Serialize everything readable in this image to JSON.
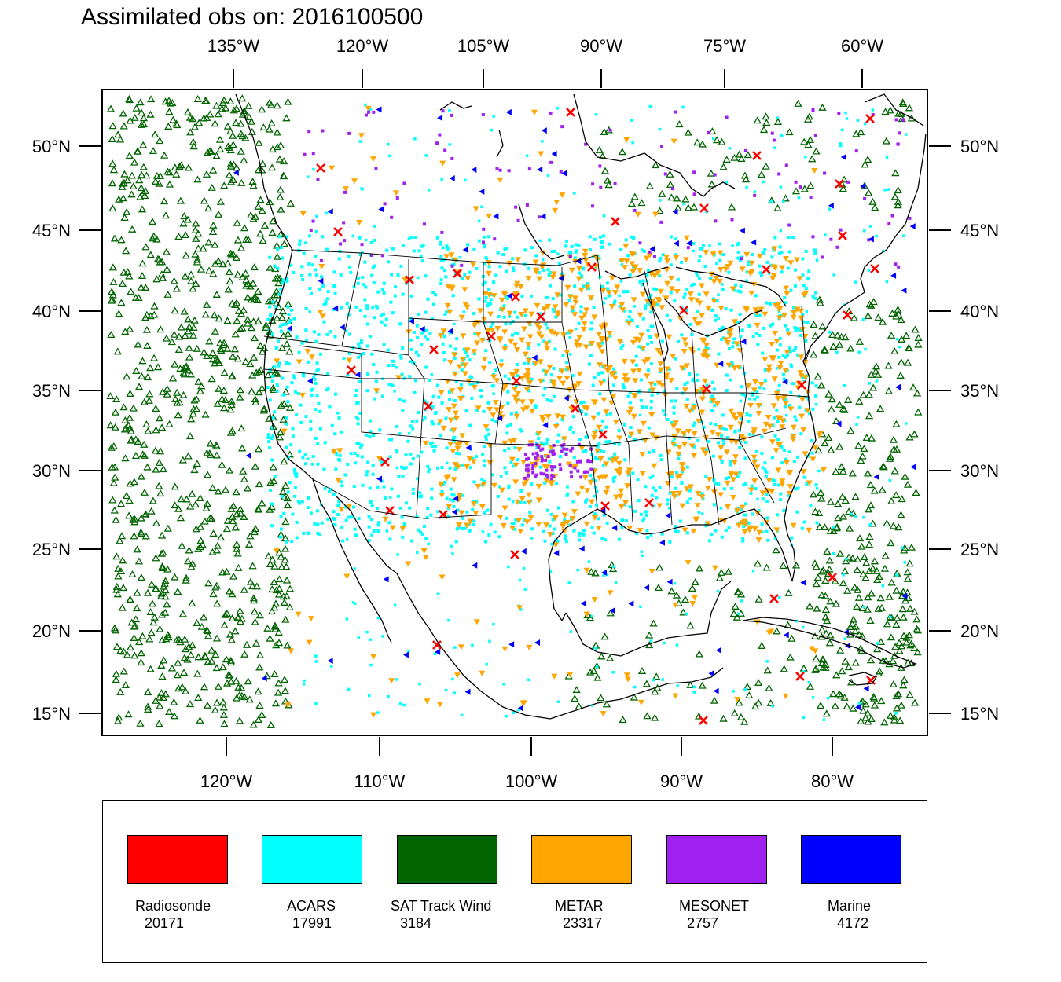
{
  "title": "Assimilated obs on: 2016100500",
  "axes": {
    "top_lon_labels": [
      "135°W",
      "120°W",
      "105°W",
      "90°W",
      "75°W",
      "60°W"
    ],
    "bottom_lon_labels": [
      "120°W",
      "110°W",
      "100°W",
      "90°W",
      "80°W"
    ],
    "lat_labels": [
      "50°N",
      "45°N",
      "40°N",
      "35°N",
      "30°N",
      "25°N",
      "20°N",
      "15°N"
    ]
  },
  "legend": [
    {
      "name": "Radiosonde",
      "count": "20171",
      "color": "#ff0000"
    },
    {
      "name": "ACARS",
      "count": "17991",
      "color": "#00ffff"
    },
    {
      "name": "SAT Track Wind",
      "count": "3184",
      "color": "#006400"
    },
    {
      "name": "METAR",
      "count": "23317",
      "color": "#ffa500"
    },
    {
      "name": "MESONET",
      "count": "2757",
      "color": "#a020f0"
    },
    {
      "name": "Marine",
      "count": "4172",
      "color": "#0000ff"
    }
  ]
}
